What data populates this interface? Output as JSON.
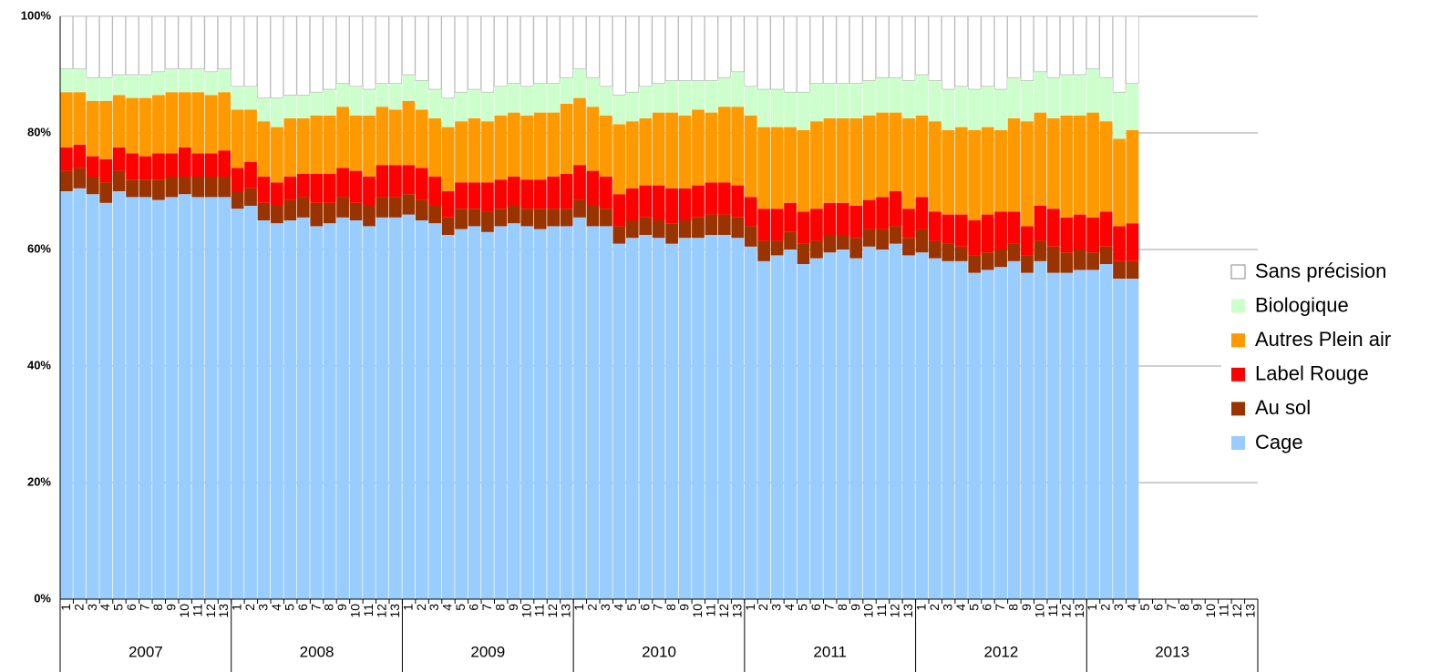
{
  "chart_data": {
    "type": "stacked-bar",
    "categories": [
      "1",
      "2",
      "3",
      "4",
      "5",
      "6",
      "7",
      "8",
      "9",
      "10",
      "11",
      "12",
      "13",
      "1",
      "2",
      "3",
      "4",
      "5",
      "6",
      "7",
      "8",
      "9",
      "10",
      "11",
      "12",
      "13",
      "1",
      "2",
      "3",
      "4",
      "5",
      "6",
      "7",
      "8",
      "9",
      "10",
      "11",
      "12",
      "13",
      "1",
      "2",
      "3",
      "4",
      "5",
      "6",
      "7",
      "8",
      "9",
      "10",
      "11",
      "12",
      "13",
      "1",
      "2",
      "3",
      "4",
      "5",
      "6",
      "7",
      "8",
      "9",
      "10",
      "11",
      "12",
      "13",
      "1",
      "2",
      "3",
      "4",
      "5",
      "6",
      "7",
      "8",
      "9",
      "10",
      "11",
      "12",
      "13",
      "1",
      "2",
      "3",
      "4",
      "5",
      "6",
      "7",
      "8",
      "9",
      "10",
      "11",
      "12",
      "13"
    ],
    "years": [
      "2007",
      "2008",
      "2009",
      "2010",
      "2011",
      "2012",
      "2013"
    ],
    "ylim": [
      0,
      100
    ],
    "yticks": [
      {
        "value": 0,
        "label": "0%"
      },
      {
        "value": 20,
        "label": "20%"
      },
      {
        "value": 40,
        "label": "40%"
      },
      {
        "value": 60,
        "label": "60%"
      },
      {
        "value": 80,
        "label": "80%"
      },
      {
        "value": 100,
        "label": "100%"
      }
    ],
    "grid": true,
    "legend": "right",
    "series": [
      {
        "name": "Cage",
        "color": "#99ccff",
        "values": [
          70,
          70.5,
          69.5,
          68,
          70,
          69,
          69,
          68.5,
          69,
          69.5,
          69,
          69,
          69,
          67,
          67.5,
          65,
          64.5,
          65,
          65.5,
          64,
          64.5,
          65.5,
          65,
          64,
          65.5,
          65.5,
          66,
          65,
          64.5,
          62.5,
          63.5,
          64,
          63,
          64,
          64.5,
          64,
          63.5,
          64,
          64,
          65.5,
          64,
          64,
          61,
          62,
          62.5,
          62,
          61,
          62,
          62,
          62.5,
          62.5,
          62,
          60.5,
          58,
          59,
          60,
          57.5,
          58.5,
          59.5,
          60,
          58.5,
          60.5,
          60,
          61,
          59,
          59.5,
          58.5,
          58,
          58,
          56,
          56.5,
          57,
          58,
          56,
          58,
          56,
          56,
          56.5,
          56.5,
          57.5,
          55,
          55,
          null,
          null,
          null,
          null,
          null,
          null,
          null,
          null,
          null
        ]
      },
      {
        "name": "Au sol",
        "color": "#993300",
        "values": [
          3.5,
          3.5,
          3,
          3.5,
          3.5,
          3,
          3,
          3.5,
          3.5,
          3,
          3.5,
          3.5,
          3.5,
          3,
          3,
          3,
          3,
          3.5,
          3.5,
          4,
          3.5,
          3.5,
          3,
          3.5,
          3.5,
          3.5,
          3.5,
          3.5,
          3,
          3,
          3.5,
          3,
          3.5,
          3,
          3,
          3,
          3.5,
          3,
          3,
          3,
          3.5,
          3,
          3,
          3,
          3,
          3,
          3.5,
          3,
          3.5,
          3.5,
          3.5,
          3.5,
          3.5,
          3.5,
          2.5,
          3,
          3.5,
          3,
          3,
          2.5,
          3.5,
          3,
          3.5,
          3,
          3,
          4,
          3,
          3,
          2.5,
          3,
          3,
          3,
          3,
          3,
          3.5,
          4.5,
          3.5,
          3.5,
          3,
          3,
          3,
          3,
          null,
          null,
          null,
          null,
          null,
          null,
          null,
          null,
          null
        ]
      },
      {
        "name": "Label Rouge",
        "color": "#ff0000",
        "values": [
          4,
          4,
          3.5,
          4,
          4,
          4.5,
          4,
          4.5,
          4,
          5,
          4,
          4,
          4.5,
          4,
          4.5,
          4.5,
          4,
          4,
          4,
          5,
          5,
          5,
          5.5,
          5,
          5.5,
          5.5,
          5,
          5.5,
          5,
          4.5,
          4.5,
          4.5,
          5,
          5,
          5,
          5,
          5,
          5.5,
          6,
          6,
          6,
          5.5,
          5.5,
          5.5,
          5.5,
          6,
          6,
          5.5,
          5.5,
          5.5,
          5.5,
          5.5,
          5,
          5.5,
          5.5,
          5,
          5.5,
          5.5,
          5.5,
          5.5,
          5.5,
          5,
          5.5,
          6,
          5,
          5.5,
          5,
          5,
          5.5,
          6,
          6.5,
          6.5,
          5.5,
          5,
          6,
          6.5,
          6,
          6,
          6,
          6,
          6,
          6.5,
          null,
          null,
          null,
          null,
          null,
          null,
          null,
          null,
          null
        ]
      },
      {
        "name": "Autres Plein air",
        "color": "#ff9900",
        "values": [
          9.5,
          9,
          9.5,
          10,
          9,
          9.5,
          10,
          10,
          10.5,
          9.5,
          10.5,
          10,
          10,
          10,
          9,
          9.5,
          9.5,
          10,
          9.5,
          10,
          10,
          10.5,
          9.5,
          10.5,
          10,
          9.5,
          11,
          10,
          10,
          11,
          10.5,
          11,
          10.5,
          11,
          11,
          11,
          11.5,
          11,
          12,
          11.5,
          11,
          10.5,
          12,
          11.5,
          11.5,
          12.5,
          13,
          12.5,
          13,
          12,
          13,
          13.5,
          14,
          14,
          14,
          13,
          14,
          15,
          14.5,
          14.5,
          15,
          14.5,
          14.5,
          13.5,
          15.5,
          14,
          15.5,
          14.5,
          15,
          15.5,
          15,
          14,
          16,
          18,
          16,
          15.5,
          17.5,
          17,
          18,
          15.5,
          15,
          16,
          null,
          null,
          null,
          null,
          null,
          null,
          null,
          null,
          null
        ]
      },
      {
        "name": "Biologique",
        "color": "#ccffcc",
        "values": [
          4,
          4,
          4,
          4,
          3.5,
          4,
          4,
          4,
          4,
          4,
          4,
          4,
          4,
          4,
          4,
          4,
          5,
          4,
          4,
          4,
          4.5,
          4,
          5,
          4.5,
          4,
          4.5,
          4.5,
          5,
          5,
          5,
          5,
          5,
          5,
          5,
          5,
          5,
          5,
          5,
          4.5,
          5,
          5,
          5,
          5,
          5,
          5.5,
          5,
          5.5,
          6,
          5,
          5.5,
          5,
          6,
          5,
          6.5,
          6.5,
          6,
          6.5,
          6.5,
          6,
          6,
          6,
          6,
          6,
          6,
          6.5,
          7,
          7,
          7,
          7,
          7,
          7,
          7,
          7,
          7,
          7,
          7,
          7,
          7,
          7.5,
          7.5,
          8,
          8,
          null,
          null,
          null,
          null,
          null,
          null,
          null,
          null,
          null
        ]
      },
      {
        "name": "Sans précision",
        "color": "#ffffff",
        "values": [
          9,
          9,
          10.5,
          10.5,
          10,
          10,
          10,
          9.5,
          9,
          9,
          9,
          9.5,
          9,
          12,
          12,
          14,
          14,
          13.5,
          13.5,
          13,
          12.5,
          11.5,
          12,
          12.5,
          11.5,
          11.5,
          10,
          11,
          12.5,
          14,
          13,
          12.5,
          13,
          12,
          11.5,
          12,
          11.5,
          11.5,
          10.5,
          9,
          10.5,
          12,
          13.5,
          13,
          12,
          11.5,
          11,
          11,
          11,
          11,
          10.5,
          9.5,
          12,
          12.5,
          12.5,
          13,
          13,
          11.5,
          11.5,
          11.5,
          11.5,
          11,
          10.5,
          10.5,
          11,
          10,
          11,
          12.5,
          12,
          12.5,
          12,
          12.5,
          10.5,
          11,
          9.5,
          10.5,
          10,
          10,
          9,
          10.5,
          13,
          11.5,
          null,
          null,
          null,
          null,
          null,
          null,
          null,
          null,
          null
        ]
      }
    ]
  }
}
